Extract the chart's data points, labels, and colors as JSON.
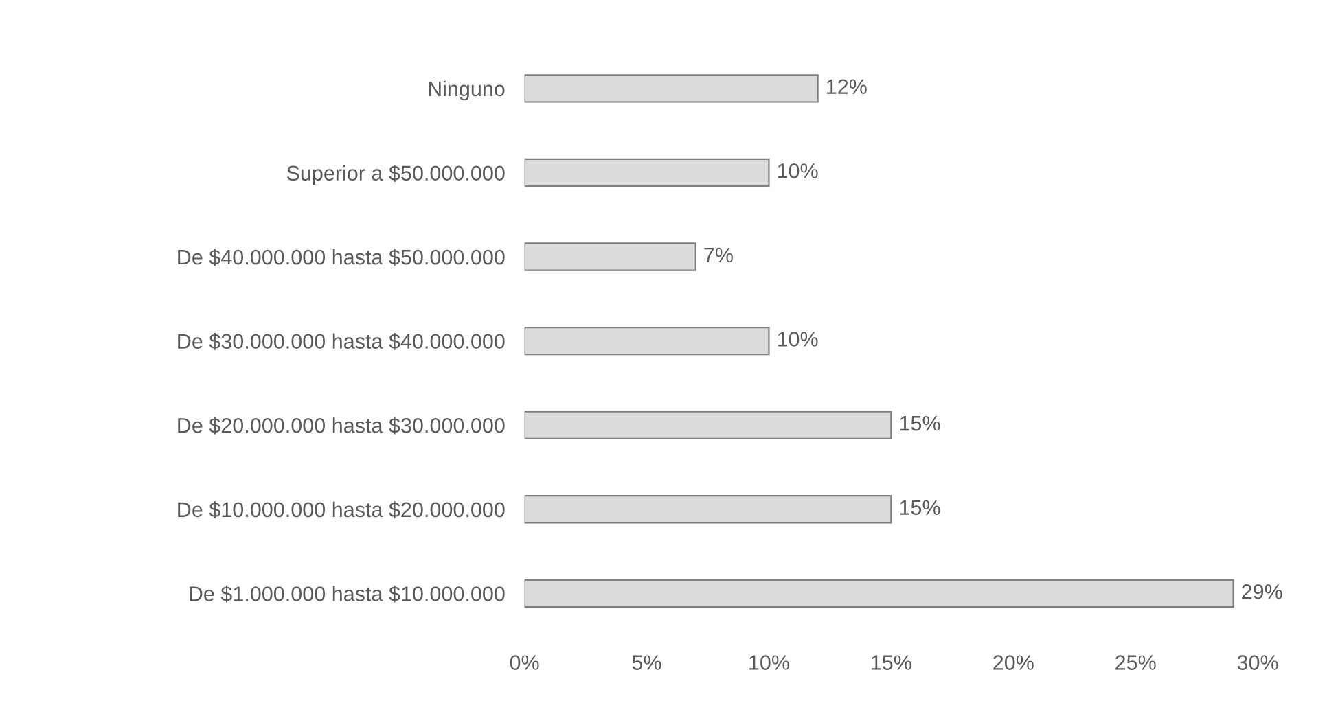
{
  "chart_data": {
    "type": "bar",
    "orientation": "horizontal",
    "categories": [
      "Ninguno",
      "Superior a $50.000.000",
      "De $40.000.000 hasta $50.000.000",
      "De $30.000.000 hasta $40.000.000",
      "De $20.000.000 hasta $30.000.000",
      "De $10.000.000 hasta $20.000.000",
      "De $1.000.000 hasta $10.000.000"
    ],
    "values": [
      12,
      10,
      7,
      10,
      15,
      15,
      29
    ],
    "value_labels": [
      "12%",
      "10%",
      "7%",
      "10%",
      "15%",
      "15%",
      "29%"
    ],
    "color": "#dcdcdc",
    "xlim": [
      0,
      30
    ],
    "xticks": [
      {
        "value": 0,
        "label": "0%"
      },
      {
        "value": 5,
        "label": "5%"
      },
      {
        "value": 10,
        "label": "10%"
      },
      {
        "value": 15,
        "label": "15%"
      },
      {
        "value": 20,
        "label": "20%"
      },
      {
        "value": 25,
        "label": "25%"
      },
      {
        "value": 30,
        "label": "30%"
      }
    ],
    "grid": false,
    "legend": false
  }
}
